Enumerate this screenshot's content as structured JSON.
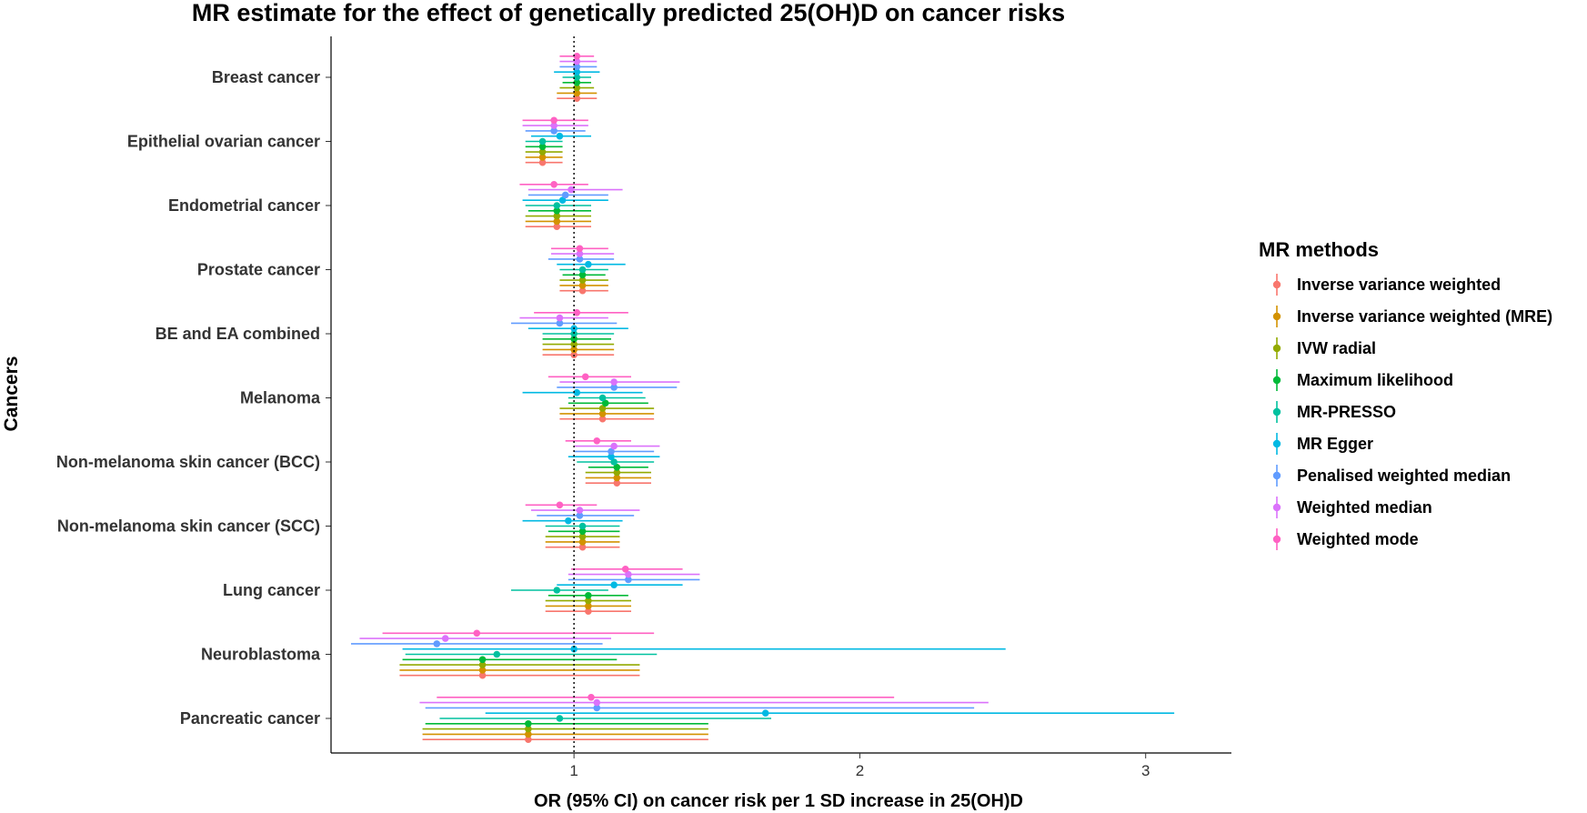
{
  "chart_data": {
    "type": "forest",
    "title": "MR estimate for the effect of genetically predicted 25(OH)D on cancer risks",
    "xlabel": "OR (95% CI) on cancer risk per 1 SD increase in 25(OH)D",
    "ylabel": "Cancers",
    "xlim": [
      0.15,
      3.3
    ],
    "x_ticks": [
      1,
      2,
      3
    ],
    "x_tick_labels": [
      "1",
      "2",
      "3"
    ],
    "reference_line": 1,
    "grid": false,
    "legend": {
      "title": "MR methods",
      "position": "right"
    },
    "series": [
      {
        "name": "Inverse variance weighted",
        "color": "#F8766D"
      },
      {
        "name": "Inverse variance weighted (MRE)",
        "color": "#D39200"
      },
      {
        "name": "IVW radial",
        "color": "#93AA00"
      },
      {
        "name": "Maximum likelihood",
        "color": "#00BA38"
      },
      {
        "name": "MR-PRESSO",
        "color": "#00C19F"
      },
      {
        "name": "MR Egger",
        "color": "#00B9E3"
      },
      {
        "name": "Penalised weighted median",
        "color": "#619CFF"
      },
      {
        "name": "Weighted median",
        "color": "#DB72FB"
      },
      {
        "name": "Weighted mode",
        "color": "#FF61C3"
      }
    ],
    "categories": [
      "Breast cancer",
      "Epithelial ovarian cancer",
      "Endometrial cancer",
      "Prostate cancer",
      "BE and EA combined",
      "Melanoma",
      "Non-melanoma skin cancer (BCC)",
      "Non-melanoma skin cancer (SCC)",
      "Lung cancer",
      "Neuroblastoma",
      "Pancreatic cancer"
    ],
    "estimates": [
      [
        [
          1.01,
          0.94,
          1.08
        ],
        [
          1.01,
          0.94,
          1.08
        ],
        [
          1.01,
          0.95,
          1.07
        ],
        [
          1.01,
          0.96,
          1.06
        ],
        [
          1.01,
          0.96,
          1.06
        ],
        [
          1.01,
          0.93,
          1.09
        ],
        [
          1.01,
          0.95,
          1.08
        ],
        [
          1.01,
          0.95,
          1.08
        ],
        [
          1.01,
          0.95,
          1.07
        ]
      ],
      [
        [
          0.89,
          0.83,
          0.96
        ],
        [
          0.89,
          0.83,
          0.96
        ],
        [
          0.89,
          0.83,
          0.96
        ],
        [
          0.89,
          0.83,
          0.96
        ],
        [
          0.89,
          0.83,
          0.96
        ],
        [
          0.95,
          0.85,
          1.06
        ],
        [
          0.93,
          0.83,
          1.04
        ],
        [
          0.93,
          0.82,
          1.05
        ],
        [
          0.93,
          0.82,
          1.05
        ]
      ],
      [
        [
          0.94,
          0.83,
          1.06
        ],
        [
          0.94,
          0.83,
          1.06
        ],
        [
          0.94,
          0.83,
          1.06
        ],
        [
          0.94,
          0.84,
          1.06
        ],
        [
          0.94,
          0.83,
          1.06
        ],
        [
          0.96,
          0.82,
          1.12
        ],
        [
          0.97,
          0.84,
          1.12
        ],
        [
          0.99,
          0.84,
          1.17
        ],
        [
          0.93,
          0.81,
          1.05
        ]
      ],
      [
        [
          1.03,
          0.95,
          1.12
        ],
        [
          1.03,
          0.95,
          1.12
        ],
        [
          1.03,
          0.95,
          1.12
        ],
        [
          1.03,
          0.96,
          1.11
        ],
        [
          1.03,
          0.95,
          1.12
        ],
        [
          1.05,
          0.94,
          1.18
        ],
        [
          1.02,
          0.91,
          1.14
        ],
        [
          1.02,
          0.92,
          1.14
        ],
        [
          1.02,
          0.92,
          1.12
        ]
      ],
      [
        [
          1.0,
          0.89,
          1.14
        ],
        [
          1.0,
          0.89,
          1.14
        ],
        [
          1.0,
          0.89,
          1.14
        ],
        [
          1.0,
          0.89,
          1.13
        ],
        [
          1.0,
          0.89,
          1.14
        ],
        [
          1.0,
          0.84,
          1.19
        ],
        [
          0.95,
          0.78,
          1.15
        ],
        [
          0.95,
          0.81,
          1.12
        ],
        [
          1.01,
          0.86,
          1.19
        ]
      ],
      [
        [
          1.1,
          0.95,
          1.28
        ],
        [
          1.1,
          0.95,
          1.28
        ],
        [
          1.1,
          0.95,
          1.28
        ],
        [
          1.11,
          0.98,
          1.26
        ],
        [
          1.1,
          0.98,
          1.25
        ],
        [
          1.01,
          0.82,
          1.24
        ],
        [
          1.14,
          0.94,
          1.36
        ],
        [
          1.14,
          0.95,
          1.37
        ],
        [
          1.04,
          0.91,
          1.2
        ]
      ],
      [
        [
          1.15,
          1.04,
          1.27
        ],
        [
          1.15,
          1.04,
          1.27
        ],
        [
          1.15,
          1.04,
          1.27
        ],
        [
          1.15,
          1.05,
          1.26
        ],
        [
          1.14,
          1.01,
          1.28
        ],
        [
          1.13,
          0.98,
          1.3
        ],
        [
          1.13,
          1.0,
          1.28
        ],
        [
          1.14,
          1.0,
          1.3
        ],
        [
          1.08,
          0.97,
          1.2
        ]
      ],
      [
        [
          1.03,
          0.9,
          1.16
        ],
        [
          1.03,
          0.9,
          1.16
        ],
        [
          1.03,
          0.9,
          1.16
        ],
        [
          1.03,
          0.91,
          1.16
        ],
        [
          1.03,
          0.9,
          1.16
        ],
        [
          0.98,
          0.82,
          1.17
        ],
        [
          1.02,
          0.87,
          1.21
        ],
        [
          1.02,
          0.85,
          1.23
        ],
        [
          0.95,
          0.83,
          1.08
        ]
      ],
      [
        [
          1.05,
          0.9,
          1.2
        ],
        [
          1.05,
          0.9,
          1.2
        ],
        [
          1.05,
          0.9,
          1.2
        ],
        [
          1.05,
          0.91,
          1.19
        ],
        [
          0.94,
          0.78,
          1.12
        ],
        [
          1.14,
          0.94,
          1.38
        ],
        [
          1.19,
          0.98,
          1.44
        ],
        [
          1.19,
          0.98,
          1.44
        ],
        [
          1.18,
          0.99,
          1.38
        ]
      ],
      [
        [
          0.68,
          0.39,
          1.23
        ],
        [
          0.68,
          0.39,
          1.23
        ],
        [
          0.68,
          0.39,
          1.23
        ],
        [
          0.68,
          0.4,
          1.15
        ],
        [
          0.73,
          0.41,
          1.29
        ],
        [
          1.0,
          0.4,
          2.51
        ],
        [
          0.52,
          0.22,
          1.1
        ],
        [
          0.55,
          0.25,
          1.13
        ],
        [
          0.66,
          0.33,
          1.28
        ]
      ],
      [
        [
          0.84,
          0.47,
          1.47
        ],
        [
          0.84,
          0.47,
          1.47
        ],
        [
          0.84,
          0.47,
          1.47
        ],
        [
          0.84,
          0.48,
          1.47
        ],
        [
          0.95,
          0.53,
          1.69
        ],
        [
          1.67,
          0.69,
          3.1
        ],
        [
          1.08,
          0.48,
          2.4
        ],
        [
          1.08,
          0.46,
          2.45
        ],
        [
          1.06,
          0.52,
          2.12
        ]
      ]
    ]
  }
}
